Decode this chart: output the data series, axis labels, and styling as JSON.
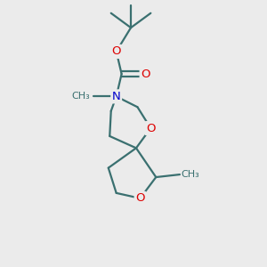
{
  "bg_color": "#ebebeb",
  "bond_color": "#3a7070",
  "bond_width": 1.6,
  "atom_colors": {
    "O": "#dd0000",
    "N": "#0000cc",
    "C": "#3a7070"
  },
  "font_size_atom": 9.5,
  "font_size_small": 8.0
}
